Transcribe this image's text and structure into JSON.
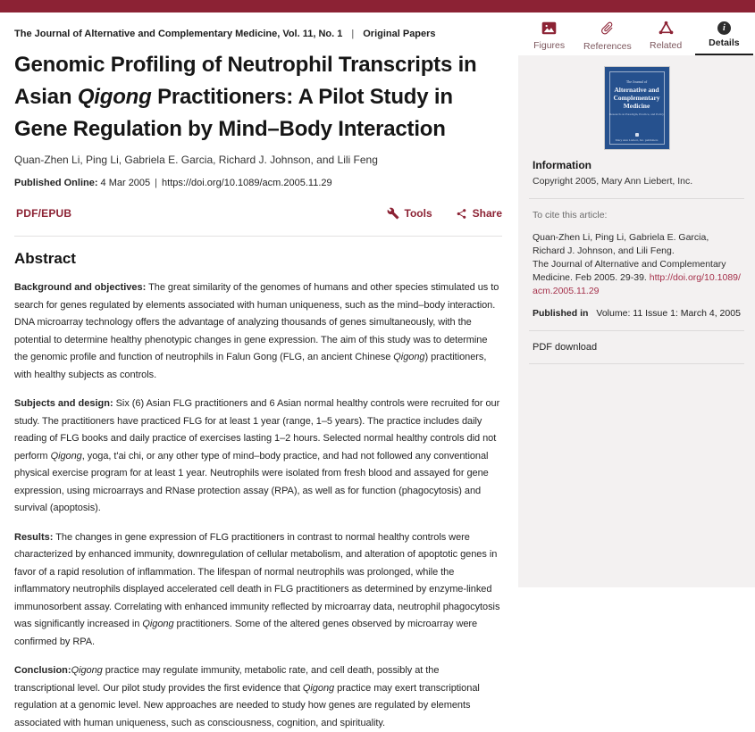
{
  "colors": {
    "brand_maroon": "#8c2234",
    "link_red": "#a5314b",
    "sidebar_bg": "#f3f1f1",
    "cover_blue": "#26518e"
  },
  "header": {
    "journal_line": "The Journal of Alternative and Complementary Medicine, Vol. 11, No. 1",
    "separator": "|",
    "section": "Original Papers"
  },
  "article": {
    "title_segments": [
      "Genomic Profiling of Neutrophil Transcripts in Asian ",
      {
        "text": "Qigong",
        "italic": true
      },
      " Practitioners: A Pilot Study in Gene Regulation by Mind–Body Interaction"
    ],
    "authors": "Quan-Zhen Li, Ping Li, Gabriela E. Garcia, Richard J. Johnson, and Lili Feng",
    "published_label": "Published Online:",
    "published_date": "4 Mar 2005",
    "separator": "|",
    "doi_url": "https://doi.org/10.1089/acm.2005.11.29"
  },
  "toolbar": {
    "pdf_epub_label": "PDF/EPUB",
    "tools_label": "Tools",
    "share_label": "Share"
  },
  "abstract": {
    "heading": "Abstract",
    "paragraphs": [
      {
        "label": "Background and objectives:",
        "segments": [
          " The great similarity of the genomes of humans and other species stimulated us to search for genes regulated by elements associated with human uniqueness, such as the mind–body interaction. DNA microarray technology offers the advantage of analyzing thousands of genes simultaneously, with the potential to determine healthy phenotypic changes in gene expression. The aim of this study was to determine the genomic profile and function of neutrophils in Falun Gong (FLG, an ancient Chinese ",
          {
            "text": "Qigong",
            "italic": true
          },
          ") practitioners, with healthy subjects as controls."
        ]
      },
      {
        "label": "Subjects and design:",
        "segments": [
          " Six (6) Asian FLG practitioners and 6 Asian normal healthy controls were recruited for our study. The practitioners have practiced FLG for at least 1 year (range, 1–5 years). The practice includes daily reading of FLG books and daily practice of exercises lasting 1–2 hours. Selected normal healthy controls did not perform ",
          {
            "text": "Qigong",
            "italic": true
          },
          ", yoga, t'ai chi, or any other type of mind–body practice, and had not followed any conventional physical exercise program for at least 1 year. Neutrophils were isolated from fresh blood and assayed for gene expression, using microarrays and RNase protection assay (RPA), as well as for function (phagocytosis) and survival (apoptosis)."
        ]
      },
      {
        "label": "Results:",
        "segments": [
          " The changes in gene expression of FLG practitioners in contrast to normal healthy controls were characterized by enhanced immunity, downregulation of cellular metabolism, and alteration of apoptotic genes in favor of a rapid resolution of inflammation. The lifespan of normal neutrophils was prolonged, while the inflammatory neutrophils displayed accelerated cell death in FLG practitioners as determined by enzyme-linked immunosorbent assay. Correlating with enhanced immunity reflected by microarray data, neutrophil phagocytosis was significantly increased in ",
          {
            "text": "Qigong",
            "italic": true
          },
          " practitioners. Some of the altered genes observed by microarray were confirmed by RPA."
        ]
      },
      {
        "label": "Conclusion:",
        "segments": [
          {
            "text": "Qigong",
            "italic": true
          },
          " practice may regulate immunity, metabolic rate, and cell death, possibly at the transcriptional level. Our pilot study provides the first evidence that ",
          {
            "text": "Qigong",
            "italic": true
          },
          " practice may exert transcriptional regulation at a genomic level. New approaches are needed to study how genes are regulated by elements associated with human uniqueness, such as consciousness, cognition, and spirituality."
        ]
      }
    ]
  },
  "sidebar": {
    "tabs": [
      {
        "label": "Figures",
        "icon": "figures-image-icon",
        "active": false
      },
      {
        "label": "References",
        "icon": "references-paperclip-icon",
        "active": false
      },
      {
        "label": "Related",
        "icon": "related-network-icon",
        "active": false
      },
      {
        "label": "Details",
        "icon": "details-info-icon",
        "active": true
      }
    ],
    "cover": {
      "journal_of": "The Journal of",
      "title_line1": "Alternative and",
      "title_line2": "Complementary",
      "title_line3": "Medicine",
      "tagline": "Research on Paradigm, Practice, and Policy",
      "publisher": "Mary Ann Liebert, Inc. publishers"
    },
    "information_heading": "Information",
    "copyright": "Copyright 2005, Mary Ann Liebert, Inc.",
    "cite_heading": "To cite this article:",
    "citation_authors": "Quan-Zhen Li, Ping Li, Gabriela E. Garcia, Richard J. Johnson, and Lili Feng.",
    "citation_source": "The Journal of Alternative and Complementary Medicine. Feb 2005. 29-39. ",
    "citation_link": "http://doi.org/10.1089/acm.2005.11.29",
    "published_in_label": "Published in",
    "published_in_value": "Volume: 11 Issue 1: March 4, 2005",
    "pdf_download_label": "PDF download"
  }
}
